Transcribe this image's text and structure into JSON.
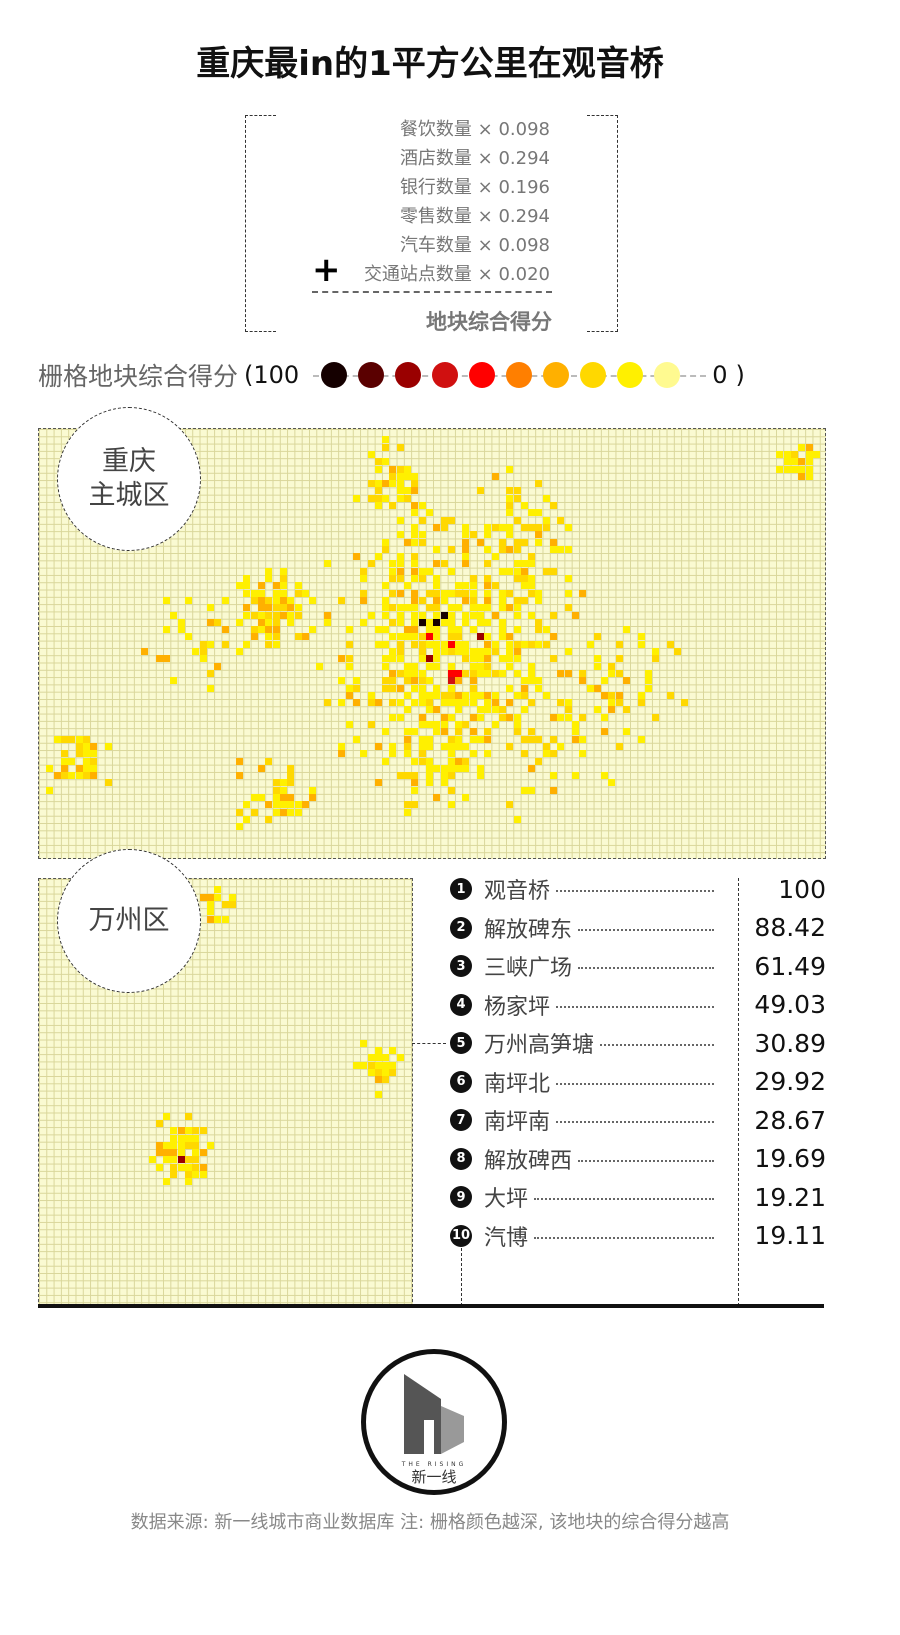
{
  "title": "重庆最in的1平方公里在观音桥",
  "formula": {
    "rows": [
      "餐饮数量 × 0.098",
      "酒店数量 × 0.294",
      "银行数量 × 0.196",
      "零售数量 × 0.294",
      "汽车数量 × 0.098",
      "交通站点数量 × 0.020"
    ],
    "plus": "+",
    "result": "地块综合得分"
  },
  "legend": {
    "label": "栅格地块综合得分",
    "open": "(",
    "max": "100",
    "min": "0",
    "close": ")",
    "colors": [
      "#150000",
      "#5a0000",
      "#9a0000",
      "#d01010",
      "#ff0000",
      "#ff7f00",
      "#ffb000",
      "#ffd800",
      "#fff000",
      "#fffa90"
    ]
  },
  "maps": {
    "main_label": "重庆\n主城区",
    "wanzhou_label": "万州区",
    "grid_bg": "#fafad2"
  },
  "ranking": [
    {
      "rank": "1",
      "name": "观音桥",
      "score": "100"
    },
    {
      "rank": "2",
      "name": "解放碑东",
      "score": "88.42"
    },
    {
      "rank": "3",
      "name": "三峡广场",
      "score": "61.49"
    },
    {
      "rank": "4",
      "name": "杨家坪",
      "score": "49.03"
    },
    {
      "rank": "5",
      "name": "万州高笋塘",
      "score": "30.89"
    },
    {
      "rank": "6",
      "name": "南坪北",
      "score": "29.92"
    },
    {
      "rank": "7",
      "name": "南坪南",
      "score": "28.67"
    },
    {
      "rank": "8",
      "name": "解放碑西",
      "score": "19.69"
    },
    {
      "rank": "9",
      "name": "大坪",
      "score": "19.21"
    },
    {
      "rank": "10",
      "name": "汽博",
      "score": "19.11"
    }
  ],
  "logo": {
    "en": "THE RISING",
    "cn": "新一线"
  },
  "footer": "数据来源: 新一线城市商业数据库  注: 栅格颜色越深, 该地块的综合得分越高"
}
